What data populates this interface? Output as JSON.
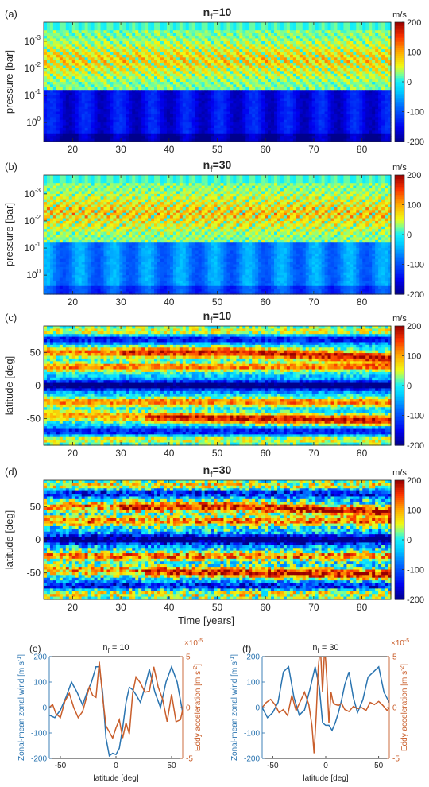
{
  "chart_data": [
    {
      "panel_label": "(a)",
      "type": "heatmap",
      "title_base": "n",
      "title_sub": "f",
      "title_tail": "=10",
      "xlabel": "",
      "ylabel": "pressure [bar]",
      "x_ticks": [
        "20",
        "30",
        "40",
        "50",
        "60",
        "70",
        "80"
      ],
      "x_tick_values": [
        20,
        30,
        40,
        50,
        60,
        70,
        80
      ],
      "xlim": [
        14,
        86
      ],
      "y_ticks": [
        {
          "base": "10",
          "exp": "-3"
        },
        {
          "base": "10",
          "exp": "-2"
        },
        {
          "base": "10",
          "exp": "-1"
        },
        {
          "base": "10",
          "exp": "0"
        }
      ],
      "y_tick_values": [
        -3,
        -2,
        -1,
        0
      ],
      "ylim_log10": [
        -3.7,
        0.7
      ],
      "y_scale": "log",
      "colorbar": {
        "unit": "m/s",
        "ticks": [
          "200",
          "100",
          "0",
          "-100",
          "-200"
        ],
        "range": [
          -200,
          200
        ]
      },
      "pattern": {
        "kind": "pressure",
        "period_years": 4.2,
        "tilt": 1.3,
        "upper_amp": 120,
        "lower_amp": -150
      }
    },
    {
      "panel_label": "(b)",
      "type": "heatmap",
      "title_base": "n",
      "title_sub": "f",
      "title_tail": "=30",
      "xlabel": "",
      "ylabel": "pressure [bar]",
      "x_ticks": [
        "20",
        "30",
        "40",
        "50",
        "60",
        "70",
        "80"
      ],
      "x_tick_values": [
        20,
        30,
        40,
        50,
        60,
        70,
        80
      ],
      "xlim": [
        14,
        86
      ],
      "y_ticks": [
        {
          "base": "10",
          "exp": "-3"
        },
        {
          "base": "10",
          "exp": "-2"
        },
        {
          "base": "10",
          "exp": "-1"
        },
        {
          "base": "10",
          "exp": "0"
        }
      ],
      "y_tick_values": [
        -3,
        -2,
        -1,
        0
      ],
      "ylim_log10": [
        -3.7,
        0.7
      ],
      "y_scale": "log",
      "colorbar": {
        "unit": "m/s",
        "ticks": [
          "200",
          "100",
          "0",
          "-100",
          "-200"
        ],
        "range": [
          -200,
          200
        ]
      },
      "pattern": {
        "kind": "pressure",
        "period_years": 2.2,
        "tilt": 1.8,
        "upper_amp": 140,
        "lower_amp": -70
      }
    },
    {
      "panel_label": "(c)",
      "type": "heatmap",
      "title_base": "n",
      "title_sub": "f",
      "title_tail": "=10",
      "xlabel": "",
      "ylabel": "latitude [deg]",
      "x_ticks": [
        "20",
        "30",
        "40",
        "50",
        "60",
        "70",
        "80"
      ],
      "x_tick_values": [
        20,
        30,
        40,
        50,
        60,
        70,
        80
      ],
      "xlim": [
        14,
        86
      ],
      "y_ticks": [
        {
          "base": "50",
          "exp": ""
        },
        {
          "base": "0",
          "exp": ""
        },
        {
          "base": "-50",
          "exp": ""
        }
      ],
      "y_tick_values": [
        50,
        0,
        -50
      ],
      "ylim": [
        -90,
        90
      ],
      "y_scale": "linear",
      "colorbar": {
        "unit": "m/s",
        "ticks": [
          "200",
          "100",
          "0",
          "-100",
          "-200"
        ],
        "range": [
          -200,
          200
        ]
      },
      "pattern": {
        "kind": "latitude",
        "noise": 0.35
      }
    },
    {
      "panel_label": "(d)",
      "type": "heatmap",
      "title_base": "n",
      "title_sub": "f",
      "title_tail": "=30",
      "xlabel": "Time [years]",
      "ylabel": "latitude [deg]",
      "x_ticks": [
        "20",
        "30",
        "40",
        "50",
        "60",
        "70",
        "80"
      ],
      "x_tick_values": [
        20,
        30,
        40,
        50,
        60,
        70,
        80
      ],
      "xlim": [
        14,
        86
      ],
      "y_ticks": [
        {
          "base": "50",
          "exp": ""
        },
        {
          "base": "0",
          "exp": ""
        },
        {
          "base": "-50",
          "exp": ""
        }
      ],
      "y_tick_values": [
        50,
        0,
        -50
      ],
      "ylim": [
        -90,
        90
      ],
      "y_scale": "linear",
      "colorbar": {
        "unit": "m/s",
        "ticks": [
          "200",
          "100",
          "0",
          "-100",
          "-200"
        ],
        "range": [
          -200,
          200
        ]
      },
      "pattern": {
        "kind": "latitude",
        "noise": 0.6
      }
    },
    {
      "panel_label": "(e)",
      "type": "line",
      "title_base": "n",
      "title_sub": "f",
      "title_tail": " = 10",
      "xlabel": "latitude [deg]",
      "ylabel_left": "Zonal-mean zonal wind [m s",
      "ylabel_left_sup": "-1",
      "ylabel_left_tail": "]",
      "ylabel_right": "Eddy acceleration [m s",
      "ylabel_right_sup": "-2",
      "ylabel_right_tail": "]",
      "right_multiplier_base": "×10",
      "right_multiplier_exp": "-5",
      "xlim": [
        -60,
        60
      ],
      "x_ticks": [
        "-50",
        "0",
        "50"
      ],
      "x_tick_values": [
        -50,
        0,
        50
      ],
      "ylim_left": [
        -200,
        200
      ],
      "left_ticks": [
        "200",
        "100",
        "0",
        "-100",
        "-200"
      ],
      "left_tick_values": [
        200,
        100,
        0,
        -100,
        -200
      ],
      "ylim_right": [
        -5,
        5
      ],
      "right_ticks": [
        "5",
        "0",
        "-5"
      ],
      "right_tick_values": [
        5,
        0,
        -5
      ],
      "colors": {
        "wind": "#2a74b0",
        "eddy": "#c95e2b"
      },
      "series": [
        {
          "axis": "left",
          "x": [
            -60,
            -55,
            -50,
            -45,
            -40,
            -35,
            -30,
            -26,
            -22,
            -18,
            -15,
            -12,
            -9,
            -6,
            -3,
            0,
            3,
            6,
            9,
            12,
            15,
            18,
            22,
            26,
            30,
            35,
            40,
            45,
            50,
            55,
            60
          ],
          "values": [
            -30,
            -40,
            -10,
            40,
            100,
            60,
            10,
            60,
            100,
            160,
            160,
            60,
            -120,
            -190,
            -180,
            -185,
            -160,
            -80,
            20,
            80,
            70,
            50,
            20,
            80,
            150,
            60,
            0,
            100,
            160,
            100,
            -20
          ]
        },
        {
          "axis": "right",
          "x": [
            -60,
            -57,
            -54,
            -50,
            -46,
            -42,
            -38,
            -34,
            -30,
            -27,
            -24,
            -21,
            -18,
            -15,
            -12,
            -9,
            -6,
            -3,
            0,
            3,
            6,
            9,
            12,
            15,
            18,
            22,
            26,
            30,
            34,
            38,
            42,
            46,
            50,
            54,
            58,
            60
          ],
          "values": [
            0,
            0.3,
            -0.6,
            -1.0,
            0.6,
            1.4,
            0,
            -1.0,
            -0.4,
            0.8,
            2.0,
            1.2,
            1.0,
            4.5,
            1.0,
            -1.8,
            -2.4,
            -3.0,
            -2.0,
            -1.2,
            -3.0,
            -1.5,
            -2.6,
            1.4,
            3.0,
            2.4,
            1.5,
            1.6,
            4.0,
            2.0,
            0.8,
            -1.4,
            1.3,
            -1.4,
            -1.2,
            -0.2
          ]
        }
      ]
    },
    {
      "panel_label": "(f)",
      "type": "line",
      "title_base": "n",
      "title_sub": "f",
      "title_tail": " = 30",
      "xlabel": "latitude [deg]",
      "ylabel_left": "Zonal-mean zonal wind [m s",
      "ylabel_left_sup": "-1",
      "ylabel_left_tail": "]",
      "ylabel_right": "Eddy acceleration [m s",
      "ylabel_right_sup": "-2",
      "ylabel_right_tail": "]",
      "right_multiplier_base": "×10",
      "right_multiplier_exp": "-5",
      "xlim": [
        -60,
        60
      ],
      "x_ticks": [
        "-50",
        "0",
        "50"
      ],
      "x_tick_values": [
        -50,
        0,
        50
      ],
      "ylim_left": [
        -200,
        200
      ],
      "left_ticks": [
        "200",
        "100",
        "0",
        "-100",
        "-200"
      ],
      "left_tick_values": [
        200,
        100,
        0,
        -100,
        -200
      ],
      "ylim_right": [
        -5,
        5
      ],
      "right_ticks": [
        "5",
        "0",
        "-5"
      ],
      "right_tick_values": [
        5,
        0,
        -5
      ],
      "colors": {
        "wind": "#2a74b0",
        "eddy": "#c95e2b"
      },
      "series": [
        {
          "axis": "left",
          "x": [
            -60,
            -55,
            -50,
            -45,
            -40,
            -35,
            -30,
            -25,
            -20,
            -15,
            -10,
            -6,
            -3,
            0,
            3,
            6,
            9,
            12,
            15,
            18,
            22,
            26,
            30,
            35,
            40,
            45,
            50,
            55,
            60
          ],
          "values": [
            0,
            -40,
            -20,
            20,
            140,
            160,
            40,
            -30,
            -10,
            70,
            160,
            80,
            -60,
            -70,
            -70,
            -90,
            -60,
            -20,
            30,
            90,
            140,
            40,
            -20,
            30,
            120,
            140,
            160,
            60,
            20
          ]
        },
        {
          "axis": "right",
          "x": [
            -60,
            -56,
            -52,
            -48,
            -44,
            -40,
            -36,
            -32,
            -28,
            -24,
            -20,
            -16,
            -13,
            -11,
            -9,
            -7,
            -5,
            -3,
            -1,
            1,
            3,
            5,
            7,
            9,
            12,
            15,
            18,
            22,
            26,
            30,
            34,
            38,
            42,
            46,
            50,
            54,
            58,
            60
          ],
          "values": [
            0,
            0.5,
            0.8,
            0.3,
            -0.5,
            -0.2,
            -0.8,
            1.2,
            -0.3,
            0.6,
            1.5,
            0.3,
            -1.8,
            -4.5,
            -0.8,
            4.0,
            6.0,
            1.5,
            6.0,
            3.0,
            -1.5,
            1.5,
            0.5,
            0.3,
            0.2,
            0.4,
            -0.2,
            -0.4,
            0.1,
            -0.1,
            0,
            -0.3,
            0.5,
            0.3,
            0.6,
            0.2,
            -0.3,
            0
          ]
        }
      ]
    }
  ]
}
